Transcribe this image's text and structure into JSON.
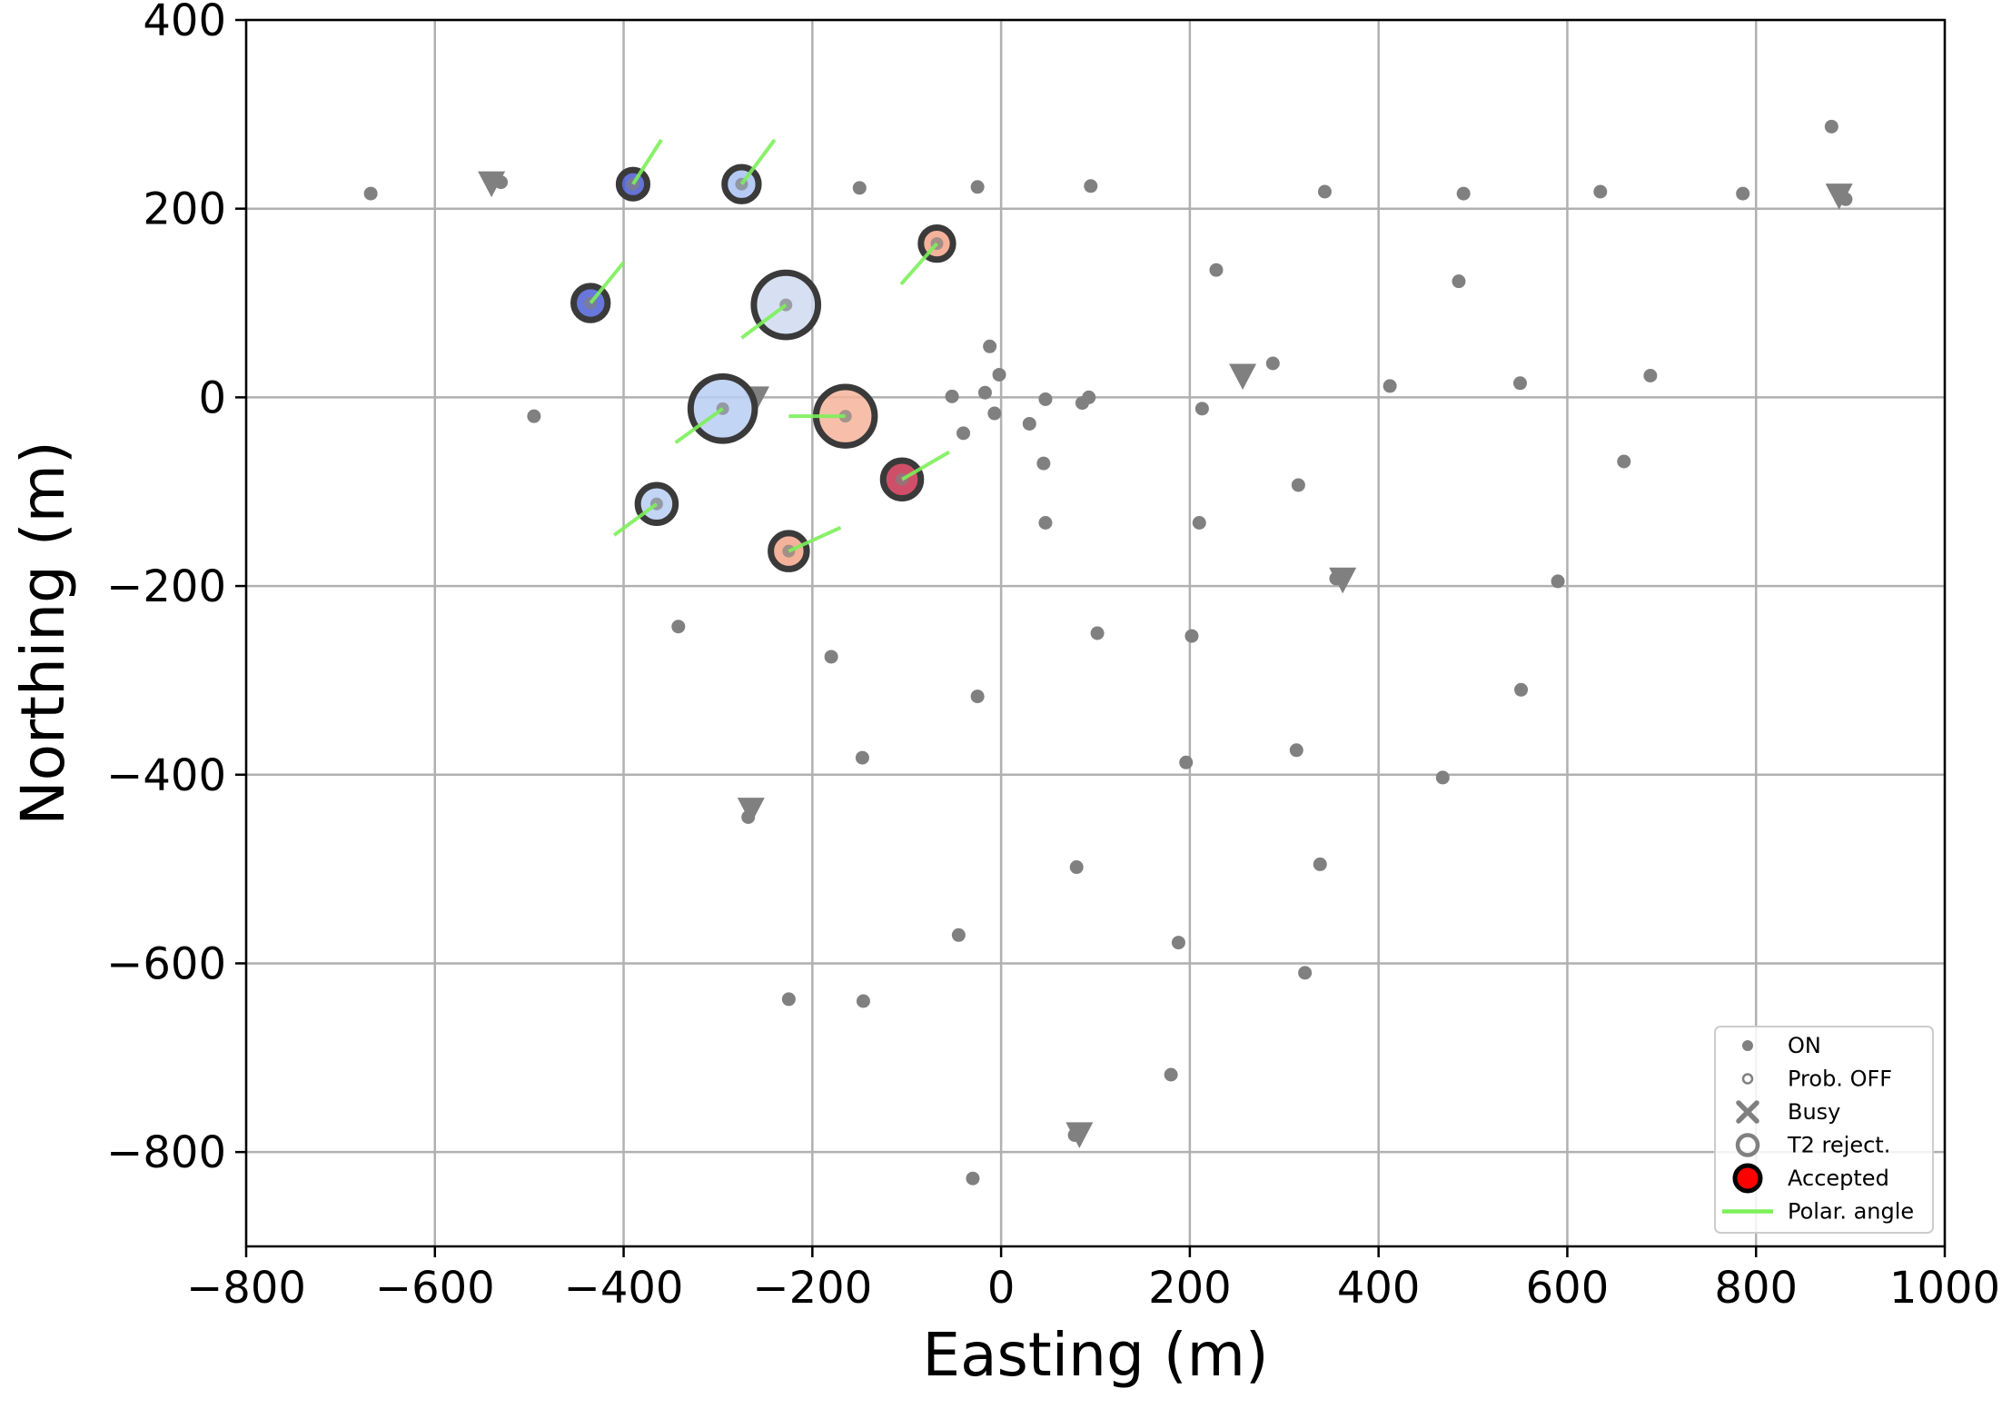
{
  "chart_data": {
    "type": "scatter",
    "xlabel": "Easting (m)",
    "ylabel": "Northing (m)",
    "xlim": [
      -800,
      1000
    ],
    "ylim": [
      -900,
      400
    ],
    "x_ticks": [
      -800,
      -600,
      -400,
      -200,
      0,
      200,
      400,
      600,
      800,
      1000
    ],
    "y_ticks": [
      -800,
      -600,
      -400,
      -200,
      0,
      200,
      400
    ],
    "x_tick_labels": [
      "−800",
      "−600",
      "−400",
      "−200",
      "0",
      "200",
      "400",
      "600",
      "800",
      "1000"
    ],
    "y_tick_labels": [
      "−800",
      "−600",
      "−400",
      "−200",
      "0",
      "200",
      "400"
    ],
    "grid": true,
    "legend_position": "lower-right",
    "colors": {
      "on_station": "#808080",
      "polar_angle": "#7cf05a",
      "accepted_edge": "#3a3a3a",
      "grid": "#b0b0b0"
    },
    "legend": [
      {
        "label": "ON",
        "symbol": "dot"
      },
      {
        "label": "Prob. OFF",
        "symbol": "ring-small"
      },
      {
        "label": "Busy",
        "symbol": "cross"
      },
      {
        "label": "T2 reject.",
        "symbol": "ring"
      },
      {
        "label": "Accepted",
        "symbol": "accepted"
      },
      {
        "label": "Polar. angle",
        "symbol": "line"
      }
    ],
    "stations_on": [
      [
        -668,
        216
      ],
      [
        -530,
        228
      ],
      [
        -495,
        -20
      ],
      [
        -342,
        -243
      ],
      [
        -268,
        -445
      ],
      [
        -225,
        -638
      ],
      [
        -180,
        -275
      ],
      [
        -147,
        -382
      ],
      [
        -146,
        -640
      ],
      [
        -150,
        222
      ],
      [
        -25,
        223
      ],
      [
        95,
        224
      ],
      [
        -12,
        54
      ],
      [
        -2,
        24
      ],
      [
        -17,
        5
      ],
      [
        -52,
        1
      ],
      [
        -7,
        -17
      ],
      [
        -40,
        -38
      ],
      [
        30,
        -28
      ],
      [
        47,
        -2
      ],
      [
        93,
        0
      ],
      [
        86,
        -6
      ],
      [
        45,
        -70
      ],
      [
        47,
        -133
      ],
      [
        -25,
        -317
      ],
      [
        -45,
        -570
      ],
      [
        80,
        -498
      ],
      [
        102,
        -250
      ],
      [
        213,
        -12
      ],
      [
        210,
        -133
      ],
      [
        202,
        -253
      ],
      [
        196,
        -387
      ],
      [
        188,
        -578
      ],
      [
        180,
        -718
      ],
      [
        228,
        135
      ],
      [
        288,
        36
      ],
      [
        315,
        -93
      ],
      [
        313,
        -374
      ],
      [
        322,
        -610
      ],
      [
        338,
        -495
      ],
      [
        343,
        218
      ],
      [
        355,
        -192
      ],
      [
        412,
        12
      ],
      [
        468,
        -403
      ],
      [
        485,
        123
      ],
      [
        490,
        216
      ],
      [
        550,
        15
      ],
      [
        551,
        -310
      ],
      [
        590,
        -195
      ],
      [
        635,
        218
      ],
      [
        660,
        -68
      ],
      [
        688,
        23
      ],
      [
        786,
        216
      ],
      [
        880,
        287
      ],
      [
        895,
        210
      ],
      [
        78,
        -782
      ],
      [
        -30,
        -828
      ]
    ],
    "stations_busy_triangle": [
      [
        -540,
        228
      ],
      [
        -260,
        0
      ],
      [
        -265,
        -436
      ],
      [
        256,
        24
      ],
      [
        362,
        -192
      ],
      [
        83,
        -780
      ],
      [
        888,
        215
      ]
    ],
    "accepted_stations": [
      {
        "x": -390,
        "y": 226,
        "r": 15,
        "color": "#4a5ad0",
        "pol": [
          -390,
          226,
          -360,
          273
        ]
      },
      {
        "x": -275,
        "y": 226,
        "r": 18,
        "color": "#a8c2f4",
        "pol": [
          -275,
          226,
          -240,
          273
        ]
      },
      {
        "x": -435,
        "y": 100,
        "r": 18,
        "color": "#4d5fd6",
        "pol": [
          -435,
          100,
          -400,
          143
        ]
      },
      {
        "x": -228,
        "y": 98,
        "r": 34,
        "color": "#cfdaf0",
        "pol": [
          -228,
          98,
          -275,
          63
        ]
      },
      {
        "x": -68,
        "y": 163,
        "r": 17,
        "color": "#f2a58a",
        "pol": [
          -68,
          163,
          -106,
          120
        ]
      },
      {
        "x": -295,
        "y": -12,
        "r": 34,
        "color": "#b9cef2",
        "pol": [
          -295,
          -12,
          -345,
          -48
        ]
      },
      {
        "x": -165,
        "y": -20,
        "r": 31,
        "color": "#f6b49a",
        "pol": [
          -165,
          -20,
          -225,
          -20
        ]
      },
      {
        "x": -105,
        "y": -87,
        "r": 20,
        "color": "#c8304e",
        "pol": [
          -105,
          -87,
          -55,
          -58
        ]
      },
      {
        "x": -365,
        "y": -113,
        "r": 20,
        "color": "#b9cef2",
        "pol": [
          -365,
          -113,
          -410,
          -146
        ]
      },
      {
        "x": -225,
        "y": -163,
        "r": 19,
        "color": "#f2a58a",
        "pol": [
          -225,
          -163,
          -170,
          -138
        ]
      }
    ]
  }
}
